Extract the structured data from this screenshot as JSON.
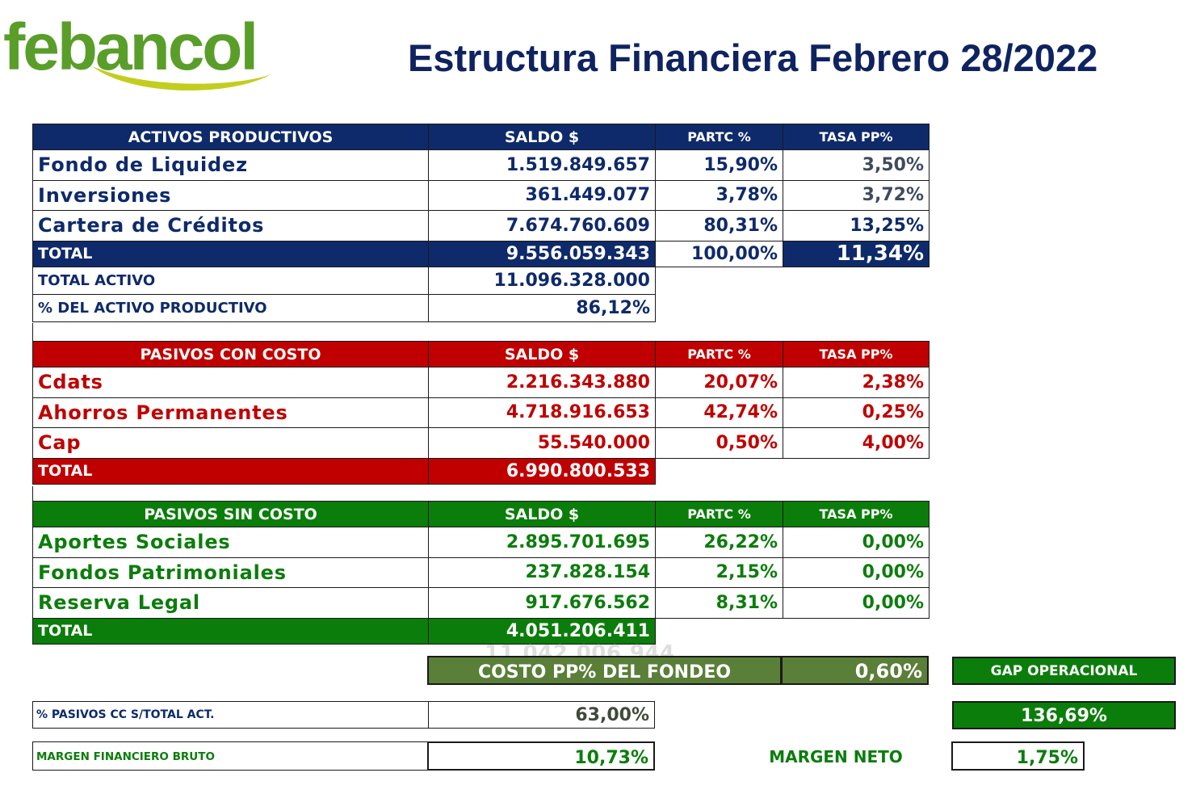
{
  "logo_text": "febancol",
  "title": "Estructura Financiera Febrero 28/2022",
  "colors": {
    "navy": "#0e2a6a",
    "red": "#c00000",
    "green": "#0b7d0b",
    "olive": "#5a7f38",
    "logo_green": "#5a9e2a",
    "logo_yellow": "#c3cd1e"
  },
  "activos": {
    "headers": {
      "name": "ACTIVOS PRODUCTIVOS",
      "saldo": "SALDO $",
      "partc": "PARTC %",
      "tasa": "TASA PP%"
    },
    "rows": [
      {
        "name": "Fondo de Liquidez",
        "saldo": "1.519.849.657",
        "partc": "15,90%",
        "tasa": "3,50%"
      },
      {
        "name": "Inversiones",
        "saldo": "361.449.077",
        "partc": "3,78%",
        "tasa": "3,72%"
      },
      {
        "name": "Cartera de Créditos",
        "saldo": "7.674.760.609",
        "partc": "80,31%",
        "tasa": "13,25%"
      }
    ],
    "total": {
      "name": "TOTAL",
      "saldo": "9.556.059.343",
      "partc": "100,00%",
      "tasa": "11,34%"
    },
    "total_activo": {
      "label": "TOTAL ACTIVO",
      "value": "11.096.328.000"
    },
    "pct_activo_productivo": {
      "label": "% DEL ACTIVO PRODUCTIVO",
      "value": "86,12%"
    }
  },
  "pasivos_con_costo": {
    "headers": {
      "name": "PASIVOS CON COSTO",
      "saldo": "SALDO $",
      "partc": "PARTC %",
      "tasa": "TASA PP%"
    },
    "rows": [
      {
        "name": "Cdats",
        "saldo": "2.216.343.880",
        "partc": "20,07%",
        "tasa": "2,38%"
      },
      {
        "name": "Ahorros Permanentes",
        "saldo": "4.718.916.653",
        "partc": "42,74%",
        "tasa": "0,25%"
      },
      {
        "name": "Cap",
        "saldo": "55.540.000",
        "partc": "0,50%",
        "tasa": "4,00%"
      }
    ],
    "total": {
      "name": "TOTAL",
      "saldo": "6.990.800.533"
    }
  },
  "pasivos_sin_costo": {
    "headers": {
      "name": "PASIVOS SIN COSTO",
      "saldo": "SALDO $",
      "partc": "PARTC %",
      "tasa": "TASA PP%"
    },
    "rows": [
      {
        "name": "Aportes Sociales",
        "saldo": "2.895.701.695",
        "partc": "26,22%",
        "tasa": "0,00%"
      },
      {
        "name": "Fondos Patrimoniales",
        "saldo": "237.828.154",
        "partc": "2,15%",
        "tasa": "0,00%"
      },
      {
        "name": "Reserva Legal",
        "saldo": "917.676.562",
        "partc": "8,31%",
        "tasa": "0,00%"
      }
    ],
    "total": {
      "name": "TOTAL",
      "saldo": "4.051.206.411"
    }
  },
  "ghost_value": "11.042.006.944",
  "costo_fondeo": {
    "label": "COSTO PP% DEL FONDEO",
    "value": "0,60%"
  },
  "gap_operacional": {
    "label": "GAP OPERACIONAL",
    "value": "136,69%"
  },
  "pct_pasivos_cc": {
    "label": "% PASIVOS CC S/TOTAL ACT.",
    "value": "63,00%"
  },
  "margen_bruto": {
    "label": "MARGEN FINANCIERO BRUTO",
    "value": "10,73%"
  },
  "margen_neto": {
    "label": "MARGEN NETO",
    "value": "1,75%"
  }
}
